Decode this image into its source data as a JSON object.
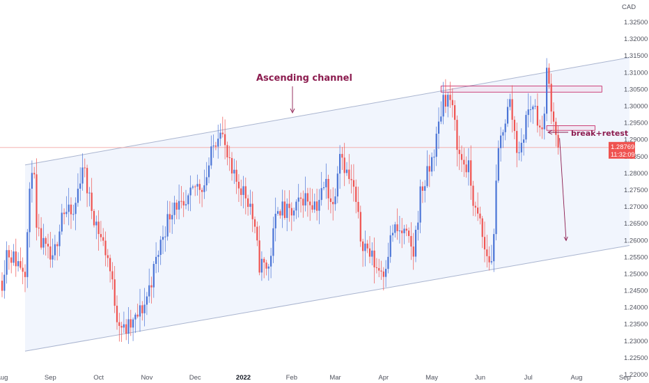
{
  "chart_data": {
    "type": "candlestick",
    "currency": "CAD",
    "ylim": [
      1.22,
      1.3275
    ],
    "y_ticks": [
      1.325,
      1.32,
      1.315,
      1.31,
      1.305,
      1.3,
      1.295,
      1.29,
      1.285,
      1.28,
      1.275,
      1.27,
      1.265,
      1.26,
      1.255,
      1.25,
      1.245,
      1.24,
      1.235,
      1.23,
      1.225,
      1.22
    ],
    "x_ticks": [
      {
        "label": "Aug",
        "index": 0,
        "bold": false
      },
      {
        "label": "Sep",
        "index": 21,
        "bold": false
      },
      {
        "label": "Oct",
        "index": 42,
        "bold": false
      },
      {
        "label": "Nov",
        "index": 63,
        "bold": false
      },
      {
        "label": "Dec",
        "index": 84,
        "bold": false
      },
      {
        "label": "2022",
        "index": 105,
        "bold": true
      },
      {
        "label": "Feb",
        "index": 126,
        "bold": false
      },
      {
        "label": "Mar",
        "index": 145,
        "bold": false
      },
      {
        "label": "Apr",
        "index": 166,
        "bold": false
      },
      {
        "label": "May",
        "index": 187,
        "bold": false
      },
      {
        "label": "Jun",
        "index": 208,
        "bold": false
      },
      {
        "label": "Jul",
        "index": 229,
        "bold": false
      },
      {
        "label": "Aug",
        "index": 250,
        "bold": false
      },
      {
        "label": "Sep",
        "index": 271,
        "bold": false
      }
    ],
    "bar_count": 243,
    "price_anchors": [
      [
        0,
        1.248
      ],
      [
        2,
        1.257
      ],
      [
        6,
        1.254
      ],
      [
        10,
        1.252
      ],
      [
        13,
        1.283
      ],
      [
        14,
        1.277
      ],
      [
        15,
        1.262
      ],
      [
        18,
        1.258
      ],
      [
        22,
        1.253
      ],
      [
        26,
        1.269
      ],
      [
        31,
        1.267
      ],
      [
        35,
        1.283
      ],
      [
        38,
        1.272
      ],
      [
        42,
        1.263
      ],
      [
        46,
        1.255
      ],
      [
        50,
        1.238
      ],
      [
        53,
        1.233
      ],
      [
        57,
        1.235
      ],
      [
        62,
        1.241
      ],
      [
        66,
        1.251
      ],
      [
        70,
        1.262
      ],
      [
        75,
        1.272
      ],
      [
        79,
        1.268
      ],
      [
        84,
        1.276
      ],
      [
        88,
        1.277
      ],
      [
        92,
        1.288
      ],
      [
        95,
        1.295
      ],
      [
        97,
        1.287
      ],
      [
        100,
        1.279
      ],
      [
        104,
        1.276
      ],
      [
        108,
        1.271
      ],
      [
        110,
        1.262
      ],
      [
        112,
        1.253
      ],
      [
        116,
        1.252
      ],
      [
        120,
        1.271
      ],
      [
        123,
        1.268
      ],
      [
        127,
        1.268
      ],
      [
        131,
        1.273
      ],
      [
        134,
        1.272
      ],
      [
        137,
        1.271
      ],
      [
        141,
        1.277
      ],
      [
        144,
        1.27
      ],
      [
        147,
        1.288
      ],
      [
        150,
        1.28
      ],
      [
        153,
        1.275
      ],
      [
        156,
        1.261
      ],
      [
        160,
        1.256
      ],
      [
        163,
        1.252
      ],
      [
        166,
        1.251
      ],
      [
        170,
        1.263
      ],
      [
        175,
        1.262
      ],
      [
        179,
        1.256
      ],
      [
        182,
        1.274
      ],
      [
        186,
        1.281
      ],
      [
        189,
        1.29
      ],
      [
        192,
        1.303
      ],
      [
        195,
        1.302
      ],
      [
        197,
        1.294
      ],
      [
        199,
        1.285
      ],
      [
        203,
        1.281
      ],
      [
        206,
        1.268
      ],
      [
        208,
        1.265
      ],
      [
        210,
        1.257
      ],
      [
        213,
        1.253
      ],
      [
        216,
        1.286
      ],
      [
        218,
        1.294
      ],
      [
        221,
        1.301
      ],
      [
        224,
        1.288
      ],
      [
        226,
        1.287
      ],
      [
        228,
        1.297
      ],
      [
        231,
        1.301
      ],
      [
        233,
        1.297
      ],
      [
        235,
        1.291
      ],
      [
        237,
        1.31
      ],
      [
        239,
        1.301
      ],
      [
        242,
        1.288
      ]
    ],
    "last_price": "1.28769",
    "countdown": "11:32:09",
    "channel": {
      "upper": [
        [
          10,
          1.2825
        ],
        [
          273,
          1.3145
        ]
      ],
      "lower": [
        [
          10,
          1.227
        ],
        [
          273,
          1.2585
        ]
      ]
    },
    "resistance_zone": [
      [
        191,
        1.306
      ],
      [
        261,
        1.3042
      ]
    ],
    "retest_zone": [
      [
        237,
        1.2942
      ],
      [
        258,
        1.2928
      ]
    ],
    "annotations": {
      "channel_label": "Ascending channel",
      "break_label": "break+retest"
    },
    "colors": {
      "up": "#4a74d6",
      "down": "#ef5350",
      "channel_line": "#a9b4cf",
      "channel_fill": "#f1f5fd",
      "annotation": "#8c1c4f",
      "price_line": "#f4a6a4",
      "price_tag": "#ef5350"
    }
  }
}
